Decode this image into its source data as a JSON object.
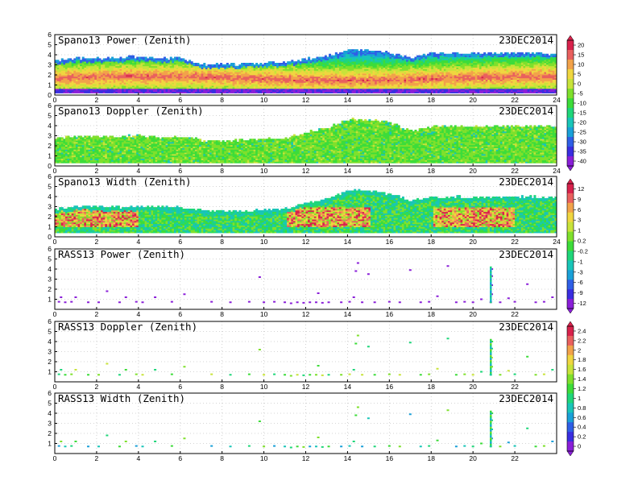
{
  "chart_data": [
    {
      "type": "heatmap",
      "title": "Spano13 Power (Zenith)",
      "date": "23DEC2014",
      "xlim": [
        0,
        24
      ],
      "ylim": [
        0,
        6
      ],
      "x_ticks": [
        "0",
        "2",
        "4",
        "6",
        "8",
        "10",
        "12",
        "14",
        "16",
        "18",
        "20",
        "22",
        "24"
      ],
      "y_ticks": [
        "0",
        "1",
        "2",
        "3",
        "4",
        "5",
        "6"
      ],
      "field": "power",
      "top_profile": [
        [
          0,
          3.4
        ],
        [
          1,
          3.6
        ],
        [
          2,
          3.6
        ],
        [
          3,
          3.6
        ],
        [
          4,
          3.8
        ],
        [
          5,
          3.6
        ],
        [
          6,
          3.6
        ],
        [
          7,
          3.0
        ],
        [
          8,
          3.0
        ],
        [
          9,
          3.0
        ],
        [
          10,
          3.1
        ],
        [
          11,
          3.2
        ],
        [
          12,
          3.5
        ],
        [
          13,
          3.8
        ],
        [
          14,
          4.4
        ],
        [
          15,
          4.4
        ],
        [
          16,
          4.1
        ],
        [
          17,
          3.7
        ],
        [
          18,
          4.1
        ],
        [
          19,
          4.1
        ],
        [
          20,
          4.1
        ],
        [
          21,
          4.1
        ],
        [
          22,
          4.1
        ],
        [
          23,
          4.1
        ],
        [
          24,
          4.0
        ]
      ],
      "bottom_profile": 0.2,
      "core_height": 1.6,
      "core_value": 13
    },
    {
      "type": "heatmap",
      "title": "Spano13 Doppler (Zenith)",
      "date": "23DEC2014",
      "xlim": [
        0,
        24
      ],
      "ylim": [
        0,
        6
      ],
      "x_ticks": [
        "0",
        "2",
        "4",
        "6",
        "8",
        "10",
        "12",
        "14",
        "16",
        "18",
        "20",
        "22",
        "24"
      ],
      "y_ticks": [
        "0",
        "1",
        "2",
        "3",
        "4",
        "5",
        "6"
      ],
      "field": "doppler",
      "top_profile": [
        [
          0,
          2.6
        ],
        [
          1,
          2.9
        ],
        [
          2,
          2.9
        ],
        [
          3,
          2.8
        ],
        [
          4,
          3.0
        ],
        [
          5,
          2.8
        ],
        [
          6,
          2.8
        ],
        [
          7,
          2.5
        ],
        [
          8,
          2.4
        ],
        [
          9,
          2.5
        ],
        [
          10,
          2.6
        ],
        [
          11,
          2.7
        ],
        [
          12,
          3.3
        ],
        [
          13,
          3.7
        ],
        [
          14,
          4.6
        ],
        [
          15,
          4.5
        ],
        [
          16,
          4.2
        ],
        [
          17,
          3.4
        ],
        [
          18,
          3.9
        ],
        [
          19,
          3.9
        ],
        [
          20,
          3.9
        ],
        [
          21,
          3.9
        ],
        [
          22,
          3.9
        ],
        [
          23,
          3.9
        ],
        [
          24,
          3.9
        ]
      ],
      "bottom_profile": 0.3
    },
    {
      "type": "heatmap",
      "title": "Spano13 Width (Zenith)",
      "date": "23DEC2014",
      "xlim": [
        0,
        24
      ],
      "ylim": [
        0,
        6
      ],
      "x_ticks": [
        "0",
        "2",
        "4",
        "6",
        "8",
        "10",
        "12",
        "14",
        "16",
        "18",
        "20",
        "22",
        "24"
      ],
      "y_ticks": [
        "0",
        "1",
        "2",
        "3",
        "4",
        "5",
        "6"
      ],
      "field": "width",
      "top_profile": [
        [
          0,
          2.7
        ],
        [
          1,
          3.0
        ],
        [
          2,
          3.0
        ],
        [
          3,
          2.9
        ],
        [
          4,
          3.0
        ],
        [
          5,
          2.9
        ],
        [
          6,
          2.9
        ],
        [
          7,
          2.6
        ],
        [
          8,
          2.5
        ],
        [
          9,
          2.5
        ],
        [
          10,
          2.6
        ],
        [
          11,
          2.8
        ],
        [
          12,
          3.3
        ],
        [
          13,
          3.7
        ],
        [
          14,
          4.6
        ],
        [
          15,
          4.5
        ],
        [
          16,
          4.2
        ],
        [
          17,
          3.5
        ],
        [
          18,
          3.9
        ],
        [
          19,
          3.9
        ],
        [
          20,
          3.9
        ],
        [
          21,
          3.9
        ],
        [
          22,
          3.9
        ],
        [
          23,
          3.9
        ],
        [
          24,
          3.9
        ]
      ],
      "bottom_profile": 0.4
    },
    {
      "type": "scatter",
      "title": "RASS13 Power (Zenith)",
      "date": "23DEC2014",
      "xlim": [
        0,
        24
      ],
      "ylim": [
        0,
        6
      ],
      "x_ticks": [
        "0",
        "2",
        "4",
        "6",
        "8",
        "10",
        "12",
        "14",
        "16",
        "18",
        "20",
        "22"
      ],
      "y_ticks": [
        "1",
        "2",
        "3",
        "4",
        "5",
        "6"
      ],
      "field": "rpower"
    },
    {
      "type": "scatter",
      "title": "RASS13 Doppler (Zenith)",
      "date": "23DEC2014",
      "xlim": [
        0,
        24
      ],
      "ylim": [
        0,
        6
      ],
      "x_ticks": [
        "0",
        "2",
        "4",
        "6",
        "8",
        "10",
        "12",
        "14",
        "16",
        "18",
        "20",
        "22"
      ],
      "y_ticks": [
        "1",
        "2",
        "3",
        "4",
        "5",
        "6"
      ],
      "field": "rdoppler"
    },
    {
      "type": "scatter",
      "title": "RASS13 Width (Zenith)",
      "date": "23DEC2014",
      "xlim": [
        0,
        24
      ],
      "ylim": [
        0,
        6
      ],
      "x_ticks": [
        "0",
        "2",
        "4",
        "6",
        "8",
        "10",
        "12",
        "14",
        "16",
        "18",
        "20",
        "22"
      ],
      "y_ticks": [
        "1",
        "2",
        "3",
        "4",
        "5",
        "6"
      ],
      "field": "rwidth"
    }
  ],
  "rass_points": [
    [
      0.2,
      0.75
    ],
    [
      0.5,
      0.7
    ],
    [
      0.8,
      0.75
    ],
    [
      1.0,
      1.2
    ],
    [
      0.3,
      1.2
    ],
    [
      1.6,
      0.7
    ],
    [
      2.1,
      0.7
    ],
    [
      2.5,
      1.8
    ],
    [
      3.1,
      0.7
    ],
    [
      3.4,
      1.2
    ],
    [
      3.9,
      0.75
    ],
    [
      4.2,
      0.7
    ],
    [
      4.8,
      1.2
    ],
    [
      5.6,
      0.75
    ],
    [
      6.2,
      1.5
    ],
    [
      7.5,
      0.75
    ],
    [
      8.4,
      0.7
    ],
    [
      9.3,
      0.75
    ],
    [
      9.8,
      3.2
    ],
    [
      10.0,
      0.7
    ],
    [
      10.5,
      0.75
    ],
    [
      11.0,
      0.7
    ],
    [
      11.3,
      0.6
    ],
    [
      11.6,
      0.7
    ],
    [
      11.9,
      0.65
    ],
    [
      12.2,
      0.7
    ],
    [
      12.5,
      0.7
    ],
    [
      12.8,
      0.65
    ],
    [
      13.1,
      0.7
    ],
    [
      12.6,
      1.6
    ],
    [
      13.7,
      0.7
    ],
    [
      14.1,
      0.75
    ],
    [
      14.3,
      1.2
    ],
    [
      14.4,
      3.8
    ],
    [
      14.5,
      4.6
    ],
    [
      14.7,
      0.7
    ],
    [
      15.0,
      3.5
    ],
    [
      15.3,
      0.7
    ],
    [
      16.0,
      0.75
    ],
    [
      16.5,
      0.7
    ],
    [
      17.0,
      3.9
    ],
    [
      17.5,
      0.7
    ],
    [
      17.9,
      0.75
    ],
    [
      18.3,
      1.3
    ],
    [
      18.8,
      4.3
    ],
    [
      19.2,
      0.7
    ],
    [
      19.6,
      0.75
    ],
    [
      20.0,
      0.7
    ],
    [
      20.4,
      1.0
    ],
    [
      20.85,
      0.7
    ],
    [
      20.9,
      1.5
    ],
    [
      20.9,
      2.4
    ],
    [
      20.9,
      3.3
    ],
    [
      20.9,
      4.0
    ],
    [
      21.3,
      0.7
    ],
    [
      21.7,
      1.1
    ],
    [
      22.0,
      0.75
    ],
    [
      22.6,
      2.5
    ],
    [
      23.0,
      0.7
    ],
    [
      23.4,
      0.75
    ],
    [
      23.8,
      1.2
    ]
  ],
  "colorbars": [
    {
      "labels": [
        "20",
        "15",
        "10",
        "5",
        "0",
        "-5",
        "-10",
        "-15",
        "-20",
        "-25",
        "-30",
        "-35",
        "-40"
      ]
    },
    {
      "labels": [
        "12",
        "9",
        "6",
        "3",
        "1",
        "0.2",
        "-0.2",
        "-1",
        "-3",
        "-6",
        "-9",
        "-12"
      ]
    },
    {
      "labels": [
        "2.4",
        "2.2",
        "2",
        "1.8",
        "1.6",
        "1.4",
        "1.2",
        "1",
        "0.8",
        "0.6",
        "0.4",
        "0.2",
        "0"
      ]
    }
  ],
  "palette": [
    "#8a1fd8",
    "#3a2ee0",
    "#2f5fe6",
    "#1aa0d8",
    "#19c5b8",
    "#1fd67a",
    "#3ddc3a",
    "#7fe02c",
    "#c8e33a",
    "#f0d640",
    "#f2a24a",
    "#e9605e",
    "#d8224c"
  ]
}
